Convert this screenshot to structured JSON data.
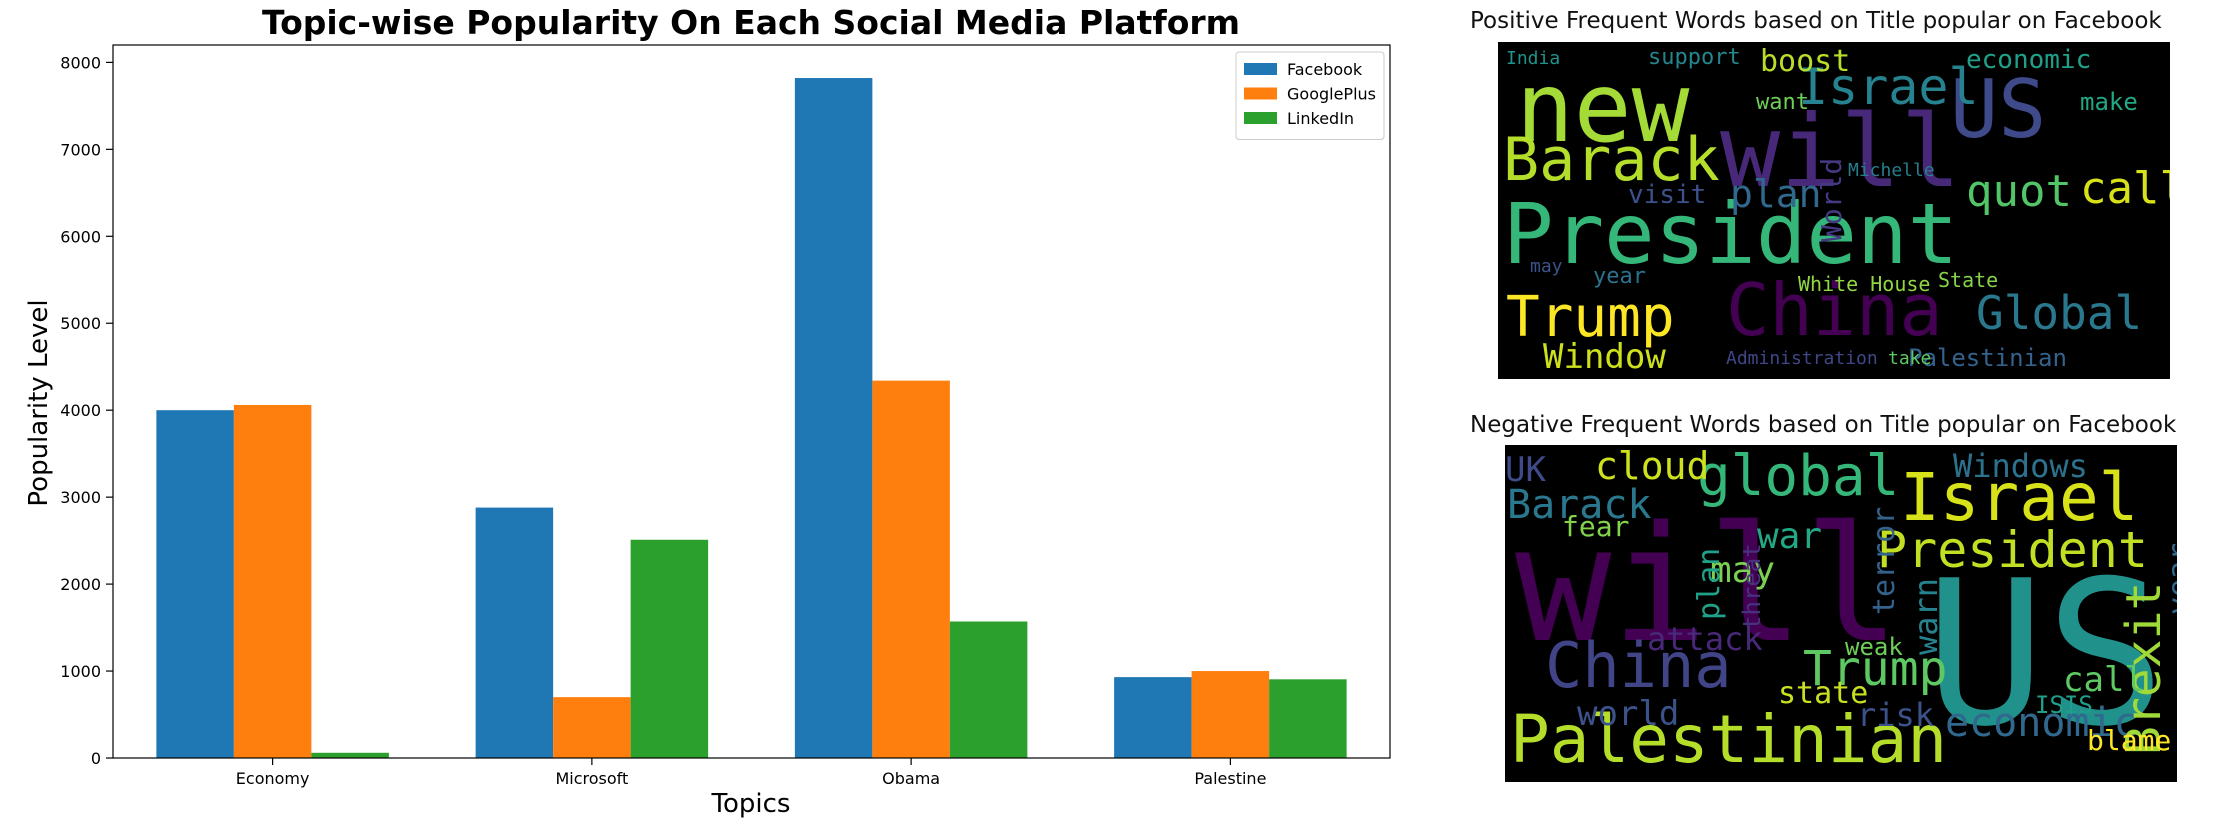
{
  "chart_data": {
    "type": "bar",
    "title": "Topic-wise Popularity On Each Social Media Platform",
    "xlabel": "Topics",
    "ylabel": "Popularity Level",
    "categories": [
      "Economy",
      "Microsoft",
      "Obama",
      "Palestine"
    ],
    "series": [
      {
        "name": "Facebook",
        "color": "#1f77b4",
        "values": [
          4000,
          2880,
          7820,
          930
        ]
      },
      {
        "name": "GooglePlus",
        "color": "#ff7f0e",
        "values": [
          4060,
          700,
          4340,
          1000
        ]
      },
      {
        "name": "LinkedIn",
        "color": "#2ca02c",
        "values": [
          60,
          2510,
          1570,
          905
        ]
      }
    ],
    "ylim": [
      0,
      8200
    ],
    "yticks": [
      0,
      1000,
      2000,
      3000,
      4000,
      5000,
      6000,
      7000,
      8000
    ],
    "legend": "top-right",
    "grid": false
  },
  "wordclouds": {
    "positive": {
      "title": "Positive Frequent Words based on Title popular on Facebook",
      "words": [
        {
          "text": "President",
          "color": "#35b779"
        },
        {
          "text": "new",
          "color": "#a5db36"
        },
        {
          "text": "will",
          "color": "#482878"
        },
        {
          "text": "US",
          "color": "#3e4a89"
        },
        {
          "text": "China",
          "color": "#440154"
        },
        {
          "text": "Trump",
          "color": "#fde725"
        },
        {
          "text": "Barack",
          "color": "#b5de2b"
        },
        {
          "text": "Israel",
          "color": "#26828e"
        },
        {
          "text": "Global",
          "color": "#2a788e"
        },
        {
          "text": "quot",
          "color": "#52c569"
        },
        {
          "text": "call",
          "color": "#d8e219"
        },
        {
          "text": "plan",
          "color": "#31688e"
        },
        {
          "text": "Window",
          "color": "#cde11d"
        },
        {
          "text": "boost",
          "color": "#b8de29"
        },
        {
          "text": "economic",
          "color": "#1fa088"
        },
        {
          "text": "visit",
          "color": "#3b528b"
        },
        {
          "text": "make",
          "color": "#22a884"
        },
        {
          "text": "World",
          "color": "#443983"
        },
        {
          "text": "want",
          "color": "#6ece58"
        },
        {
          "text": "year",
          "color": "#2c728e"
        },
        {
          "text": "Palestinian",
          "color": "#33638d"
        },
        {
          "text": "Administration",
          "color": "#3f4788"
        },
        {
          "text": "take",
          "color": "#5ec962"
        },
        {
          "text": "White House",
          "color": "#90d743"
        },
        {
          "text": "State",
          "color": "#84d44b"
        },
        {
          "text": "Michelle",
          "color": "#287d8e"
        },
        {
          "text": "support",
          "color": "#24868e"
        },
        {
          "text": "India",
          "color": "#20938c"
        },
        {
          "text": "may",
          "color": "#3b528b"
        }
      ]
    },
    "negative": {
      "title": "Negative Frequent Words based on Title popular on Facebook",
      "words": [
        {
          "text": "will",
          "color": "#440154"
        },
        {
          "text": "US",
          "color": "#21918c"
        },
        {
          "text": "Palestinian",
          "color": "#b5de2b"
        },
        {
          "text": "Israel",
          "color": "#d8e219"
        },
        {
          "text": "President",
          "color": "#c2df23"
        },
        {
          "text": "China",
          "color": "#414487"
        },
        {
          "text": "Trump",
          "color": "#5ec962"
        },
        {
          "text": "global",
          "color": "#35b779"
        },
        {
          "text": "Barack",
          "color": "#2a788e"
        },
        {
          "text": "cloud",
          "color": "#cde11d"
        },
        {
          "text": "economic",
          "color": "#31688e"
        },
        {
          "text": "Windows",
          "color": "#2c728e"
        },
        {
          "text": "Brexit",
          "color": "#a0da39"
        },
        {
          "text": "world",
          "color": "#3b528b"
        },
        {
          "text": "attack",
          "color": "#482878"
        },
        {
          "text": "may",
          "color": "#7ad151"
        },
        {
          "text": "war",
          "color": "#22a884"
        },
        {
          "text": "plan",
          "color": "#1fa088"
        },
        {
          "text": "UK",
          "color": "#3e4a89"
        },
        {
          "text": "fear",
          "color": "#84d44b"
        },
        {
          "text": "risk",
          "color": "#3b528b"
        },
        {
          "text": "state",
          "color": "#c8e020"
        },
        {
          "text": "call",
          "color": "#5ec962"
        },
        {
          "text": "terror",
          "color": "#33638d"
        },
        {
          "text": "warn",
          "color": "#26828e"
        },
        {
          "text": "ISIS",
          "color": "#1f9e89"
        },
        {
          "text": "blame",
          "color": "#fde725"
        },
        {
          "text": "year",
          "color": "#31688e"
        },
        {
          "text": "threat",
          "color": "#46327e"
        },
        {
          "text": "weak",
          "color": "#6ece58"
        }
      ]
    }
  }
}
